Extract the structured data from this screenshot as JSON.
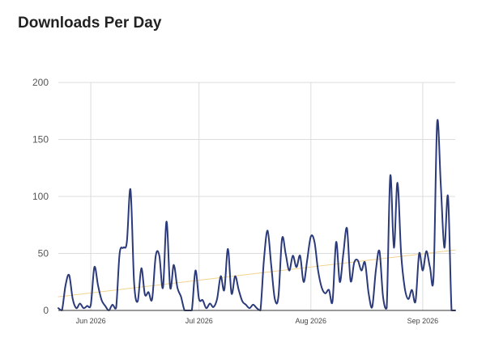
{
  "chart_data": {
    "type": "line",
    "title": "Downloads Per Day",
    "xlabel": "",
    "ylabel": "",
    "ylim": [
      0,
      200
    ],
    "yticks": [
      0,
      50,
      100,
      150,
      200
    ],
    "xlim": [
      "2026-05-23",
      "2026-09-10"
    ],
    "xticks": [
      {
        "date": "2026-06-01",
        "label": "Jun 2026"
      },
      {
        "date": "2026-07-01",
        "label": "Jul 2026"
      },
      {
        "date": "2026-08-01",
        "label": "Aug 2026"
      },
      {
        "date": "2026-09-01",
        "label": "Sep 2026"
      }
    ],
    "grid": true,
    "series": [
      {
        "name": "",
        "color": "#2b3a7a",
        "x": [
          "2026-05-23",
          "2026-05-24",
          "2026-05-25",
          "2026-05-26",
          "2026-05-27",
          "2026-05-28",
          "2026-05-29",
          "2026-05-30",
          "2026-05-31",
          "2026-06-01",
          "2026-06-02",
          "2026-06-03",
          "2026-06-04",
          "2026-06-05",
          "2026-06-06",
          "2026-06-07",
          "2026-06-08",
          "2026-06-09",
          "2026-06-10",
          "2026-06-11",
          "2026-06-12",
          "2026-06-13",
          "2026-06-14",
          "2026-06-15",
          "2026-06-16",
          "2026-06-17",
          "2026-06-18",
          "2026-06-19",
          "2026-06-20",
          "2026-06-21",
          "2026-06-22",
          "2026-06-23",
          "2026-06-24",
          "2026-06-25",
          "2026-06-26",
          "2026-06-27",
          "2026-06-28",
          "2026-06-29",
          "2026-06-30",
          "2026-07-01",
          "2026-07-02",
          "2026-07-03",
          "2026-07-04",
          "2026-07-05",
          "2026-07-06",
          "2026-07-07",
          "2026-07-08",
          "2026-07-09",
          "2026-07-10",
          "2026-07-11",
          "2026-07-12",
          "2026-07-13",
          "2026-07-14",
          "2026-07-15",
          "2026-07-16",
          "2026-07-17",
          "2026-07-18",
          "2026-07-19",
          "2026-07-20",
          "2026-07-21",
          "2026-07-22",
          "2026-07-23",
          "2026-07-24",
          "2026-07-25",
          "2026-07-26",
          "2026-07-27",
          "2026-07-28",
          "2026-07-29",
          "2026-07-30",
          "2026-07-31",
          "2026-08-01",
          "2026-08-02",
          "2026-08-03",
          "2026-08-04",
          "2026-08-05",
          "2026-08-06",
          "2026-08-07",
          "2026-08-08",
          "2026-08-09",
          "2026-08-10",
          "2026-08-11",
          "2026-08-12",
          "2026-08-13",
          "2026-08-14",
          "2026-08-15",
          "2026-08-16",
          "2026-08-17",
          "2026-08-18",
          "2026-08-19",
          "2026-08-20",
          "2026-08-21",
          "2026-08-22",
          "2026-08-23",
          "2026-08-24",
          "2026-08-25",
          "2026-08-26",
          "2026-08-27",
          "2026-08-28",
          "2026-08-29",
          "2026-08-30",
          "2026-08-31",
          "2026-09-01",
          "2026-09-02",
          "2026-09-03",
          "2026-09-04",
          "2026-09-05",
          "2026-09-06",
          "2026-09-07",
          "2026-09-08",
          "2026-09-09",
          "2026-09-10"
        ],
        "values": [
          2,
          0,
          22,
          31,
          10,
          2,
          6,
          2,
          4,
          5,
          38,
          22,
          9,
          4,
          0,
          5,
          2,
          50,
          55,
          60,
          106,
          25,
          8,
          37,
          14,
          16,
          10,
          48,
          48,
          20,
          78,
          20,
          40,
          20,
          12,
          0,
          0,
          0,
          35,
          10,
          9,
          2,
          6,
          3,
          10,
          30,
          18,
          54,
          15,
          30,
          18,
          8,
          5,
          2,
          5,
          2,
          0,
          45,
          70,
          40,
          10,
          12,
          63,
          50,
          35,
          48,
          38,
          48,
          25,
          45,
          65,
          60,
          35,
          20,
          15,
          18,
          8,
          60,
          25,
          50,
          72,
          26,
          42,
          44,
          35,
          42,
          15,
          3,
          35,
          52,
          12,
          2,
          118,
          55,
          112,
          50,
          20,
          10,
          18,
          8,
          50,
          35,
          52,
          38,
          30,
          165,
          110,
          55,
          100,
          0,
          0
        ]
      },
      {
        "name": "",
        "color": "#f2d28c",
        "x": [
          "2026-05-23",
          "2026-09-10"
        ],
        "values": [
          12,
          53
        ]
      }
    ]
  }
}
